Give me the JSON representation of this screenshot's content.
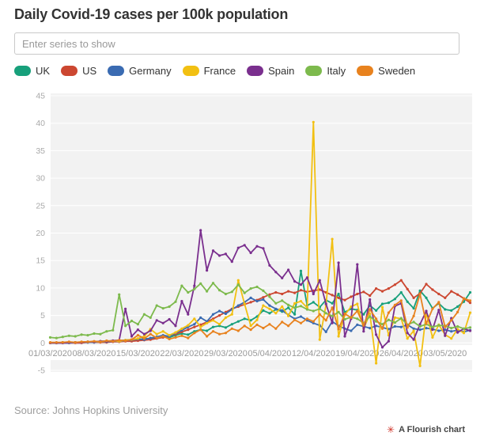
{
  "header": {
    "title": "Daily Covid-19 cases per 100k population"
  },
  "controls": {
    "series_filter_placeholder": "Enter series to show"
  },
  "footer": {
    "source": "Source: Johns Hopkins University",
    "attribution": "A Flourish chart",
    "attribution_icon_color": "#cf2f24"
  },
  "chart_data": {
    "type": "line",
    "title": "Daily Covid-19 cases per 100k population",
    "xlabel": "",
    "ylabel": "",
    "grid": true,
    "legend_position": "top",
    "plot_bg": "#f2f2f2",
    "gridline_color": "#ffffff",
    "ylim": [
      -5,
      45
    ],
    "ytick_step": 5,
    "ytick_labels": [
      "45",
      "40",
      "35",
      "30",
      "25",
      "20",
      "15",
      "10",
      "5",
      "0",
      "-5"
    ],
    "x_unit": "day",
    "x_start_date": "01/03/2020",
    "x_end_date": "07/05/2020",
    "x_tick_positions_days": [
      0,
      7,
      14,
      21,
      28,
      35,
      42,
      49,
      56,
      63
    ],
    "x_tick_labels": [
      "01/03/2020",
      "08/03/2020",
      "15/03/2020",
      "22/03/2020",
      "29/03/2020",
      "05/04/2020",
      "12/04/2020",
      "19/04/2020",
      "26/04/2020",
      "03/05/2020"
    ],
    "series": [
      {
        "name": "UK",
        "color": "#17a07b",
        "values": [
          0.0,
          0.0,
          0.1,
          0.1,
          0.1,
          0.1,
          0.2,
          0.2,
          0.3,
          0.3,
          0.4,
          0.4,
          0.5,
          0.6,
          0.5,
          0.8,
          0.7,
          1.0,
          1.2,
          1.0,
          1.4,
          1.7,
          1.5,
          2.1,
          2.4,
          2.2,
          2.9,
          3.1,
          2.8,
          3.4,
          3.9,
          4.4,
          4.1,
          4.8,
          5.9,
          5.4,
          6.1,
          5.7,
          6.4,
          5.2,
          13.1,
          6.8,
          7.4,
          6.5,
          7.8,
          7.2,
          8.9,
          5.6,
          6.2,
          6.0,
          5.2,
          6.8,
          5.9,
          7.1,
          7.3,
          8.0,
          9.2,
          7.5,
          6.3,
          9.5,
          8.2,
          6.3,
          7.2,
          6.1,
          5.9,
          6.6,
          7.5,
          9.2
        ]
      },
      {
        "name": "US",
        "color": "#cc4731",
        "values": [
          0.0,
          0.0,
          0.0,
          0.0,
          0.0,
          0.0,
          0.1,
          0.1,
          0.1,
          0.1,
          0.2,
          0.2,
          0.3,
          0.3,
          0.4,
          0.5,
          0.6,
          0.8,
          1.0,
          1.3,
          1.6,
          2.0,
          2.4,
          2.9,
          3.3,
          3.8,
          4.4,
          5.0,
          5.6,
          6.2,
          6.6,
          7.0,
          7.4,
          7.8,
          8.3,
          8.8,
          9.2,
          8.9,
          9.4,
          9.1,
          9.6,
          9.3,
          9.5,
          9.7,
          9.2,
          8.7,
          8.2,
          7.8,
          8.4,
          8.9,
          9.3,
          8.6,
          9.9,
          9.4,
          9.9,
          10.6,
          11.4,
          9.8,
          8.2,
          9.0,
          10.7,
          9.7,
          8.9,
          8.2,
          9.4,
          8.8,
          8.1,
          7.3
        ]
      },
      {
        "name": "Germany",
        "color": "#3a6bb2",
        "values": [
          0.0,
          0.0,
          0.0,
          0.0,
          0.1,
          0.1,
          0.1,
          0.1,
          0.2,
          0.2,
          0.3,
          0.3,
          0.4,
          0.5,
          0.7,
          0.6,
          0.9,
          1.1,
          1.4,
          1.2,
          1.8,
          2.3,
          2.9,
          3.4,
          4.6,
          3.9,
          5.2,
          5.8,
          5.3,
          6.1,
          6.8,
          7.4,
          8.2,
          7.6,
          7.9,
          6.8,
          6.2,
          5.9,
          5.1,
          4.4,
          4.8,
          4.1,
          3.6,
          3.2,
          2.0,
          3.9,
          3.1,
          2.6,
          2.2,
          3.3,
          3.0,
          2.7,
          3.1,
          2.8,
          2.5,
          3.0,
          2.9,
          3.3,
          2.6,
          2.4,
          2.7,
          2.5,
          2.2,
          2.4,
          2.1,
          2.3,
          2.0,
          2.3
        ]
      },
      {
        "name": "France",
        "color": "#f2c012",
        "values": [
          0.0,
          0.0,
          0.1,
          0.1,
          0.1,
          0.1,
          0.2,
          0.2,
          0.2,
          0.3,
          0.4,
          0.3,
          0.5,
          0.6,
          0.8,
          1.2,
          2.5,
          1.6,
          2.1,
          1.4,
          1.9,
          2.6,
          3.2,
          4.4,
          2.9,
          3.6,
          4.1,
          3.4,
          4.6,
          5.2,
          11.4,
          7.1,
          3.1,
          4.2,
          6.8,
          6.2,
          5.4,
          6.6,
          4.9,
          7.2,
          7.6,
          6.4,
          40.2,
          0.6,
          6.9,
          18.9,
          1.2,
          5.1,
          6.6,
          7.1,
          2.6,
          5.3,
          -3.7,
          6.5,
          1.4,
          4.6,
          4.4,
          0.8,
          2.2,
          -4.2,
          5.5,
          1.0,
          3.3,
          1.5,
          0.8,
          2.5,
          1.8,
          5.5
        ]
      },
      {
        "name": "Spain",
        "color": "#7a2f8e",
        "values": [
          0.0,
          0.0,
          0.0,
          0.1,
          0.1,
          0.1,
          0.2,
          0.2,
          0.3,
          0.3,
          0.4,
          0.5,
          6.2,
          1.2,
          2.4,
          1.6,
          2.2,
          4.1,
          3.6,
          4.3,
          3.1,
          7.6,
          5.2,
          10.4,
          20.5,
          13.2,
          16.8,
          15.9,
          16.2,
          14.8,
          17.3,
          17.8,
          16.4,
          17.6,
          17.2,
          14.1,
          12.9,
          11.8,
          13.3,
          11.2,
          10.6,
          11.9,
          8.9,
          11.4,
          7.1,
          3.6,
          14.6,
          1.2,
          4.4,
          14.3,
          2.1,
          7.9,
          1.5,
          -0.8,
          0.3,
          6.7,
          7.2,
          1.8,
          0.6,
          3.4,
          5.8,
          2.4,
          6.0,
          1.3,
          4.5,
          1.9,
          2.6,
          2.2
        ]
      },
      {
        "name": "Italy",
        "color": "#7dba4d",
        "values": [
          1.0,
          0.9,
          1.1,
          1.3,
          1.2,
          1.5,
          1.4,
          1.7,
          1.6,
          2.1,
          2.3,
          8.8,
          3.1,
          4.0,
          3.4,
          5.2,
          4.6,
          6.8,
          6.3,
          6.6,
          7.5,
          10.4,
          9.2,
          9.8,
          10.8,
          9.4,
          10.9,
          9.6,
          8.9,
          9.3,
          10.6,
          9.1,
          9.9,
          10.2,
          9.5,
          8.4,
          7.2,
          7.7,
          6.9,
          6.4,
          6.7,
          6.1,
          5.8,
          6.2,
          5.4,
          4.9,
          5.6,
          4.3,
          4.7,
          4.4,
          3.6,
          4.8,
          3.9,
          3.4,
          4.2,
          3.7,
          4.5,
          3.3,
          3.8,
          3.0,
          3.4,
          2.9,
          3.2,
          3.1,
          2.7,
          3.0,
          2.6,
          2.8
        ]
      },
      {
        "name": "Sweden",
        "color": "#e8821e",
        "values": [
          0.1,
          0.1,
          0.1,
          0.2,
          0.1,
          0.2,
          0.2,
          0.3,
          0.2,
          0.4,
          0.3,
          0.5,
          0.4,
          0.6,
          1.4,
          0.8,
          1.6,
          0.9,
          1.2,
          0.7,
          1.0,
          1.3,
          0.9,
          1.8,
          2.4,
          1.2,
          2.1,
          1.6,
          1.8,
          2.6,
          2.2,
          3.1,
          2.4,
          3.3,
          2.7,
          3.4,
          2.6,
          3.8,
          3.1,
          4.2,
          3.6,
          4.4,
          3.9,
          5.2,
          4.1,
          6.4,
          2.5,
          5.3,
          4.6,
          5.8,
          3.2,
          6.1,
          4.4,
          2.6,
          5.5,
          6.9,
          7.7,
          2.8,
          4.9,
          8.9,
          3.5,
          6.2,
          7.4,
          2.9,
          4.1,
          5.6,
          8.1,
          7.7
        ]
      }
    ]
  }
}
